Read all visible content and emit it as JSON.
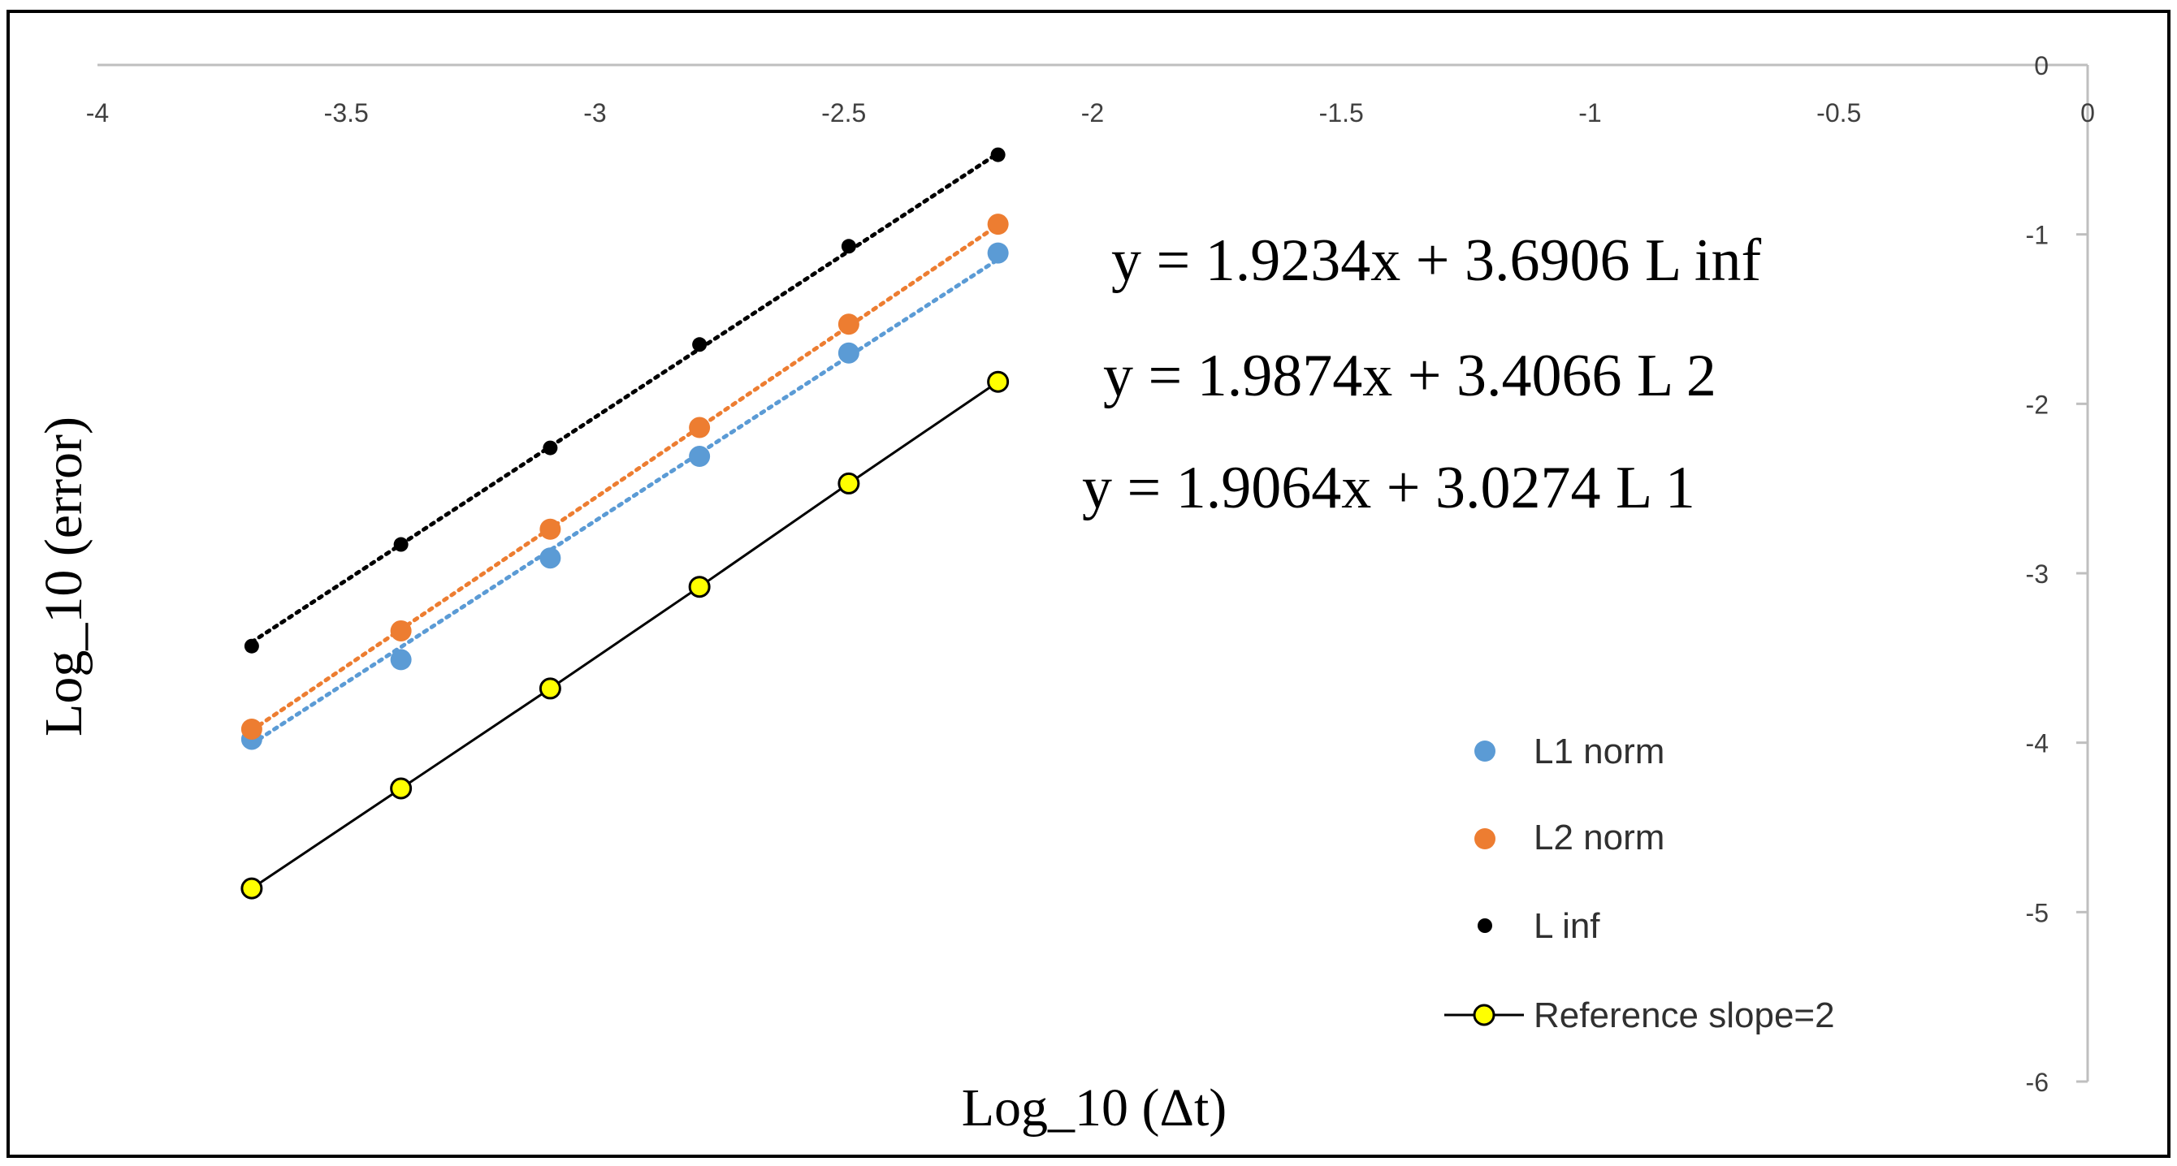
{
  "chart_data": {
    "type": "scatter",
    "xlabel": "Log_10 (Δt)",
    "ylabel": "Log_10 (error)",
    "xlim": [
      -4,
      0
    ],
    "ylim": [
      -6,
      0
    ],
    "x_ticks": [
      "-4",
      "-3.5",
      "-3",
      "-2.5",
      "-2",
      "-1.5",
      "-1",
      "-0.5",
      "0"
    ],
    "y_ticks": [
      "0",
      "-1",
      "-2",
      "-3",
      "-4",
      "-5",
      "-6"
    ],
    "x_tick_values": [
      -4,
      -3.5,
      -3,
      -2.5,
      -2,
      -1.5,
      -1,
      -0.5,
      0
    ],
    "y_tick_values": [
      0,
      -1,
      -2,
      -3,
      -4,
      -5,
      -6
    ],
    "x_axis_position": "top",
    "y_axis_position": "right",
    "grid": false,
    "legend_placement": "bottom-right",
    "x": [
      -3.69,
      -3.39,
      -3.09,
      -2.79,
      -2.49,
      -2.19
    ],
    "series": [
      {
        "name": "L1 norm",
        "marker": "circle",
        "color": "#5B9BD5",
        "values": [
          -3.98,
          -3.51,
          -2.91,
          -2.31,
          -1.7,
          -1.11
        ],
        "trendline": {
          "slope": 1.9064,
          "intercept": 3.0274,
          "style": "dotted"
        }
      },
      {
        "name": "L2 norm",
        "marker": "circle",
        "color": "#ED7D31",
        "values": [
          -3.92,
          -3.34,
          -2.74,
          -2.14,
          -1.53,
          -0.94
        ],
        "trendline": {
          "slope": 1.9874,
          "intercept": 3.4066,
          "style": "dotted"
        }
      },
      {
        "name": "L inf",
        "marker": "circle-small",
        "color": "#000000",
        "values": [
          -3.43,
          -2.83,
          -2.26,
          -1.65,
          -1.07,
          -0.53
        ],
        "trendline": {
          "slope": 1.9234,
          "intercept": 3.6906,
          "style": "dotted"
        }
      },
      {
        "name": "Reference slope=2",
        "marker": "circle-outlined",
        "color": "#FFFF00",
        "line_color": "#000000",
        "values": [
          -4.86,
          -4.27,
          -3.68,
          -3.08,
          -2.47,
          -1.87
        ],
        "line": "solid"
      }
    ],
    "annotations": [
      "y = 1.9234x + 3.6906   L inf",
      "y = 1.9874x + 3.4066   L 2",
      "y = 1.9064x + 3.0274   L 1"
    ]
  }
}
